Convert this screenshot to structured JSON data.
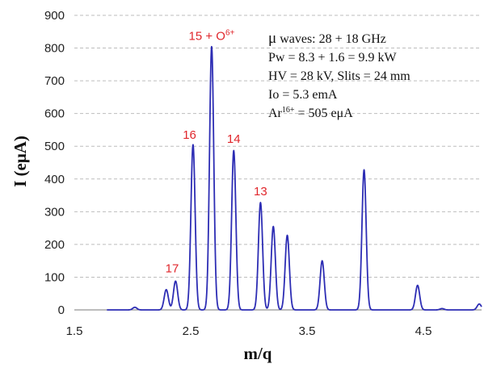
{
  "chart_data": {
    "type": "line",
    "xlabel": "m/q",
    "ylabel": "I (eμA)",
    "xlim": [
      1.5,
      5.0
    ],
    "ylim": [
      0,
      900
    ],
    "x_ticks": [
      "1.5",
      "2.5",
      "3.5",
      "4.5"
    ],
    "y_ticks": [
      "0",
      "100",
      "200",
      "300",
      "400",
      "500",
      "600",
      "700",
      "800",
      "900"
    ],
    "grid": true,
    "series": [
      {
        "color": "#2d2db4",
        "peaks": [
          {
            "x": 2.02,
            "y": 8
          },
          {
            "x": 2.29,
            "y": 62
          },
          {
            "x": 2.37,
            "y": 88
          },
          {
            "x": 2.52,
            "y": 505
          },
          {
            "x": 2.68,
            "y": 805
          },
          {
            "x": 2.87,
            "y": 487
          },
          {
            "x": 3.1,
            "y": 328
          },
          {
            "x": 3.21,
            "y": 255
          },
          {
            "x": 3.33,
            "y": 228
          },
          {
            "x": 3.63,
            "y": 150
          },
          {
            "x": 3.99,
            "y": 428
          },
          {
            "x": 4.45,
            "y": 75
          },
          {
            "x": 4.66,
            "y": 4
          },
          {
            "x": 4.98,
            "y": 18
          }
        ]
      }
    ],
    "annotations": [
      {
        "x": 2.34,
        "y": 110,
        "text_main": "17",
        "text_sup": ""
      },
      {
        "x": 2.49,
        "y": 518,
        "text_main": "16",
        "text_sup": ""
      },
      {
        "x": 2.68,
        "y": 820,
        "text_main": "15 + O",
        "text_sup": "6+"
      },
      {
        "x": 2.87,
        "y": 505,
        "text_main": "14",
        "text_sup": ""
      },
      {
        "x": 3.1,
        "y": 345,
        "text_main": "13",
        "text_sup": ""
      }
    ],
    "info_box": [
      {
        "prefix": "μ",
        "main": " waves: 28 + 18 GHz",
        "sup": "",
        "suffix": ""
      },
      {
        "prefix": "",
        "main": "Pw = 8.3 + 1.6 = 9.9 kW",
        "sup": "",
        "suffix": ""
      },
      {
        "prefix": "",
        "main": "HV = 28 kV, Slits = 24 mm",
        "sup": "",
        "suffix": ""
      },
      {
        "prefix": "",
        "main": "Io = 5.3 emA",
        "sup": "",
        "suffix": ""
      },
      {
        "prefix": "",
        "main": "Ar",
        "sup": "16+",
        "suffix": " = 505 eμA"
      }
    ]
  }
}
